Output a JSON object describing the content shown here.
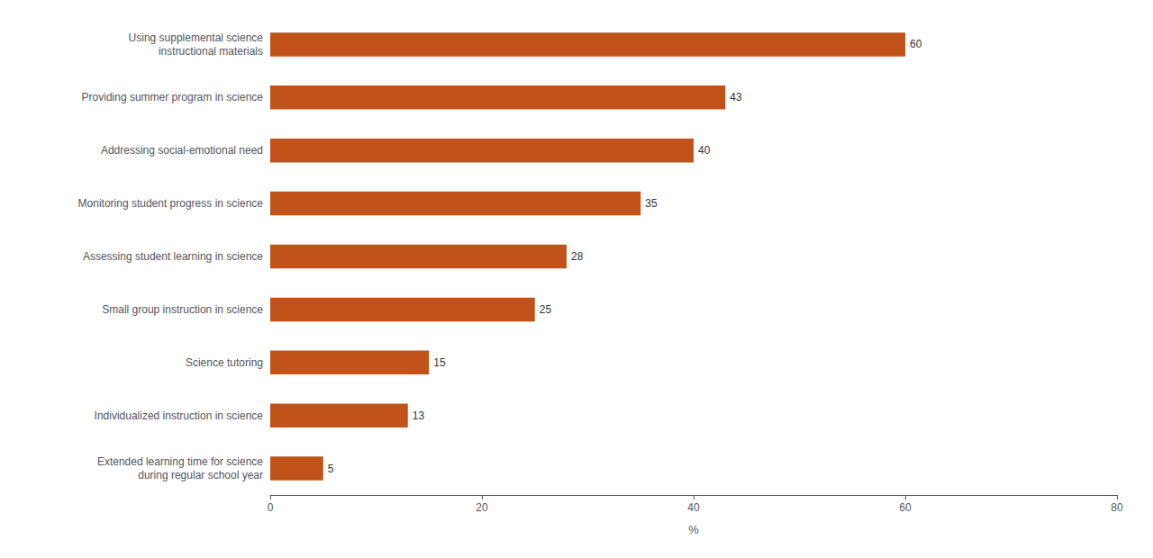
{
  "chart_data": {
    "type": "bar",
    "orientation": "horizontal",
    "categories": [
      "Extended learning time for science\nduring regular school year",
      "Individualized instruction in science",
      "Science tutoring",
      "Small group instruction in science",
      "Assessing student learning in science",
      "Monitoring student progress in science",
      "Addressing social-emotional need",
      "Providing summer program in science",
      "Using supplemental science\ninstructional materials"
    ],
    "values": [
      5,
      13,
      15,
      25,
      28,
      35,
      40,
      43,
      60
    ],
    "color": "#C0521A",
    "xlabel": "%",
    "xlim": [
      0,
      80
    ],
    "xticks": [
      0,
      20,
      40,
      60,
      80
    ],
    "data_labels": true,
    "grid": false
  }
}
